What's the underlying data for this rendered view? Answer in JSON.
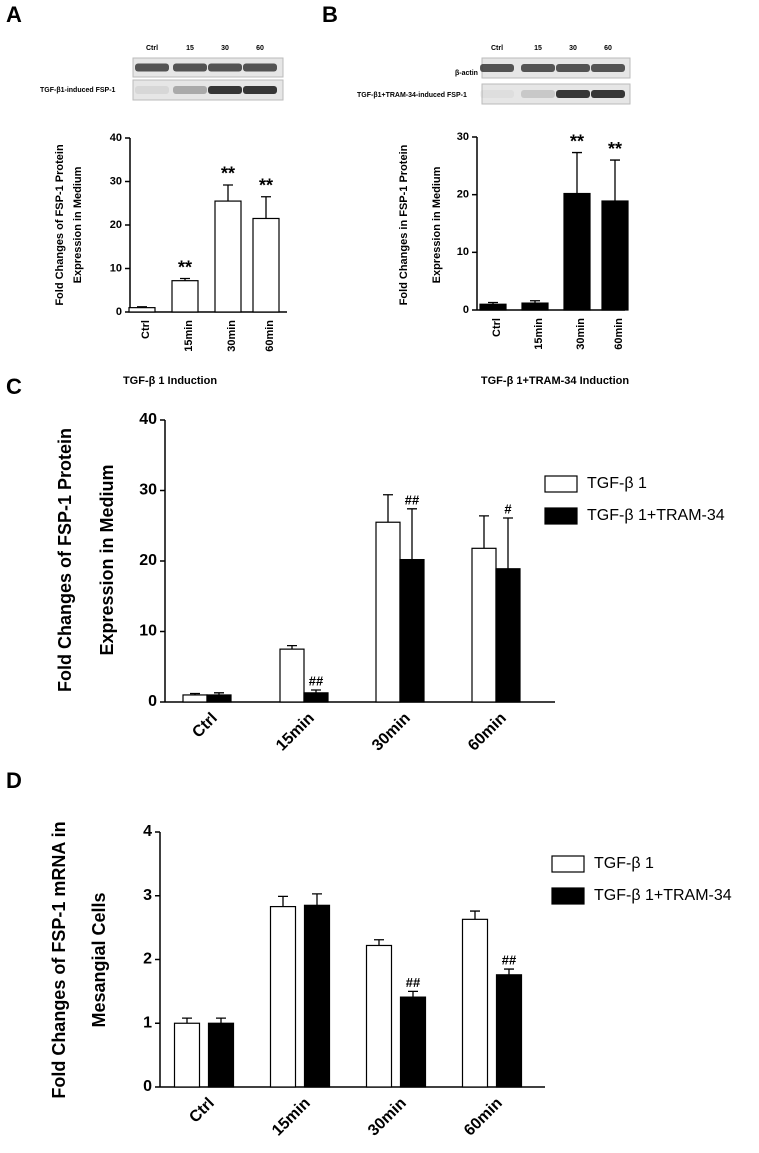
{
  "chart_data": [
    {
      "type": "bar",
      "panel": "A",
      "blot_lanes": [
        "Ctrl",
        "15",
        "30",
        "60"
      ],
      "blot_labels": [
        "TGF-β1-induced FSP-1"
      ],
      "ylabel": [
        "Fold Changes of FSP-1 Protein",
        "Expression in Medium"
      ],
      "xlabel": "TGF-β 1 Induction",
      "categories": [
        "Ctrl",
        "15min",
        "30min",
        "60min"
      ],
      "ylim": [
        0,
        40
      ],
      "yticks": [
        0,
        10,
        20,
        30,
        40
      ],
      "series": [
        {
          "color": "#ffffff",
          "values": [
            1,
            7.2,
            25.5,
            21.5
          ],
          "errors": [
            0.2,
            0.5,
            3.7,
            5
          ],
          "annotations": [
            null,
            "**",
            "**",
            "**"
          ]
        }
      ]
    },
    {
      "type": "bar",
      "panel": "B",
      "blot_lanes": [
        "Ctrl",
        "15",
        "30",
        "60"
      ],
      "blot_labels": [
        "β-actin",
        "TGF-β1+TRAM-34-induced FSP-1"
      ],
      "ylabel": [
        "Fold Changes in FSP-1 Protein",
        "Expression in Medium"
      ],
      "xlabel": "TGF-β 1+TRAM-34 Induction",
      "categories": [
        "Ctrl",
        "15min",
        "30min",
        "60min"
      ],
      "ylim": [
        0,
        30
      ],
      "yticks": [
        0,
        10,
        20,
        30
      ],
      "series": [
        {
          "color": "#000000",
          "values": [
            1,
            1.2,
            20.2,
            18.9
          ],
          "errors": [
            0.3,
            0.4,
            7.1,
            7.1
          ],
          "annotations": [
            null,
            null,
            "**",
            "**"
          ]
        }
      ]
    },
    {
      "type": "bar",
      "panel": "C",
      "ylabel": [
        "Fold Changes of FSP-1 Protein",
        "Expression in Medium"
      ],
      "categories": [
        "Ctrl",
        "15min",
        "30min",
        "60min"
      ],
      "ylim": [
        0,
        40
      ],
      "yticks": [
        0,
        10,
        20,
        30,
        40
      ],
      "series": [
        {
          "name": "TGF-β 1",
          "color": "#ffffff",
          "values": [
            1,
            7.5,
            25.5,
            21.8
          ],
          "errors": [
            0.2,
            0.5,
            3.9,
            4.6
          ],
          "annotations": [
            null,
            null,
            null,
            null
          ]
        },
        {
          "name": "TGF-β 1+TRAM-34",
          "color": "#000000",
          "values": [
            1,
            1.3,
            20.2,
            18.9
          ],
          "errors": [
            0.3,
            0.4,
            7.2,
            7.2
          ],
          "annotations": [
            null,
            "##",
            "##",
            "#"
          ]
        }
      ]
    },
    {
      "type": "bar",
      "panel": "D",
      "ylabel": [
        "Fold Changes of FSP-1 mRNA in",
        "Mesangial Cells"
      ],
      "categories": [
        "Ctrl",
        "15min",
        "30min",
        "60min"
      ],
      "ylim": [
        0,
        4
      ],
      "yticks": [
        0,
        1,
        2,
        3,
        4
      ],
      "series": [
        {
          "name": "TGF-β 1",
          "color": "#ffffff",
          "values": [
            1,
            2.83,
            2.22,
            2.63
          ],
          "errors": [
            0.08,
            0.16,
            0.09,
            0.13
          ],
          "annotations": [
            null,
            null,
            null,
            null
          ]
        },
        {
          "name": "TGF-β 1+TRAM-34",
          "color": "#000000",
          "values": [
            1,
            2.85,
            1.41,
            1.76
          ],
          "errors": [
            0.08,
            0.18,
            0.09,
            0.09
          ],
          "annotations": [
            null,
            null,
            "##",
            "##"
          ]
        }
      ]
    }
  ]
}
